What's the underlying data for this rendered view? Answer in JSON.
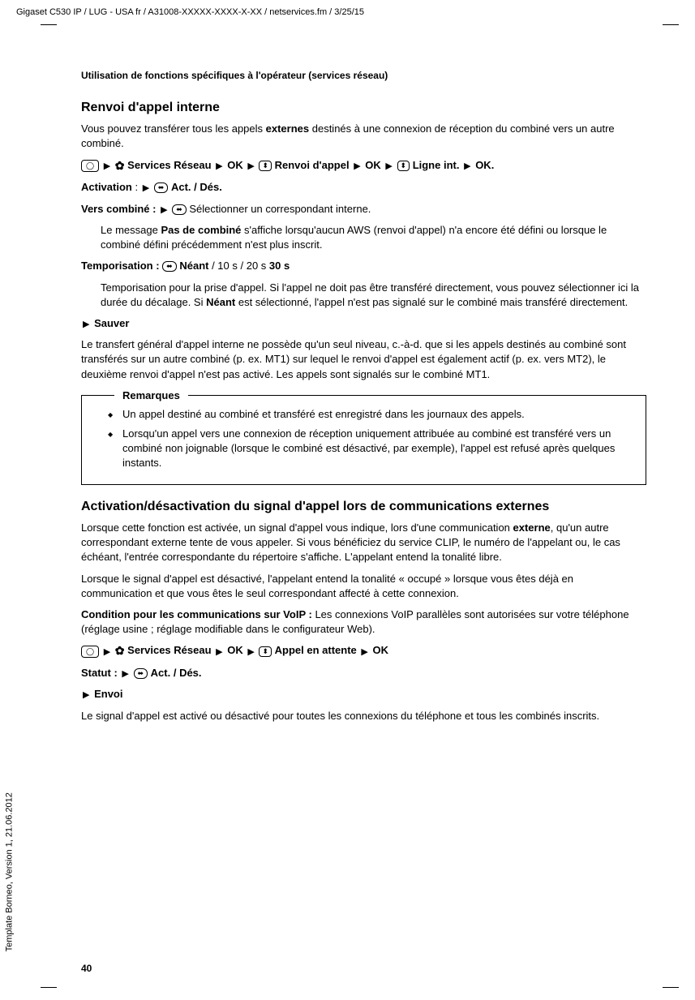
{
  "meta": {
    "top_header": "Gigaset C530 IP / LUG - USA fr / A31008-XXXXX-XXXX-X-XX / netservices.fm / 3/25/15",
    "side_text": "Template Borneo, Version 1, 21.06.2012",
    "page_number": "40",
    "page_header": "Utilisation de fonctions spécifiques à l'opérateur (services réseau)"
  },
  "section1": {
    "title": "Renvoi d'appel interne",
    "p1a": "Vous pouvez transférer tous les appels ",
    "p1b": "externes",
    "p1c": " destinés à une connexion de réception du combiné vers un autre combiné.",
    "nav": {
      "t1": "Services Réseau",
      "t2": "OK",
      "t3": "Renvoi d'appel",
      "t4": "OK",
      "t5": "Ligne int.",
      "t6": "OK."
    },
    "activation_label": "Activation",
    "activation_val": "Act. / Dés.",
    "vers_label": "Vers combiné :",
    "vers_text": "Sélectionner un correspondant interne.",
    "vers_sub1a": "Le message ",
    "vers_sub1b": "Pas de combiné",
    "vers_sub1c": " s'affiche lorsqu'aucun AWS (renvoi d'appel) n'a encore été défini ou lorsque le combiné défini précédemment n'est plus inscrit.",
    "tempo_label": "Temporisation :",
    "tempo_val_a": "Néant",
    "tempo_val_b": " / 10 s / 20 s ",
    "tempo_val_c": "30 s",
    "tempo_sub1a": "Temporisation pour la prise d'appel. Si l'appel ne doit pas être transféré directement, vous pouvez sélectionner ici la durée du décalage. Si ",
    "tempo_sub1b": "Néant",
    "tempo_sub1c": " est sélectionné, l'appel n'est pas signalé sur le combiné mais transféré directement.",
    "sauver": "Sauver",
    "p2": "Le transfert général d'appel interne ne possède qu'un seul niveau, c.-à-d. que si les appels destinés au combiné sont transférés sur un autre combiné (p. ex. MT1) sur lequel le renvoi d'appel est également actif (p. ex. vers MT2), le deuxième renvoi d'appel n'est pas activé. Les appels sont signalés sur le combiné MT1.",
    "box_title": "Remarques",
    "box_item1": "Un appel destiné au combiné et transféré est enregistré dans les journaux des appels.",
    "box_item2": "Lorsqu'un appel vers une connexion de réception uniquement attribuée au combiné est transféré vers un combiné non joignable (lorsque le combiné est désactivé, par exemple), l'appel est refusé après quelques instants."
  },
  "section2": {
    "title": "Activation/désactivation du signal d'appel lors de communications externes",
    "p1a": "Lorsque cette fonction est activée, un signal d'appel vous indique, lors d'une communication ",
    "p1b": "externe",
    "p1c": ", qu'un autre correspondant externe tente de vous appeler. Si vous bénéficiez du service CLIP, le numéro de l'appelant ou, le cas échéant, l'entrée correspondante du répertoire s'affiche. L'appelant entend la tonalité libre.",
    "p2": "Lorsque le signal d'appel est désactivé, l'appelant entend la tonalité « occupé » lorsque vous êtes déjà en communication et que vous êtes le seul correspondant affecté à cette connexion.",
    "p3a": "Condition pour les communications sur VoIP :",
    "p3b": " Les connexions VoIP parallèles sont autorisées sur votre téléphone (réglage usine ; réglage modifiable dans le configurateur Web).",
    "nav": {
      "t1": "Services Réseau",
      "t2": "OK",
      "t3": "Appel en attente",
      "t4": "OK"
    },
    "statut_label": "Statut :",
    "statut_val": "Act. / Dés.",
    "envoi": "Envoi",
    "p4": "Le signal d'appel est activé ou désactivé pour toutes les connexions du téléphone et tous les combinés inscrits."
  }
}
